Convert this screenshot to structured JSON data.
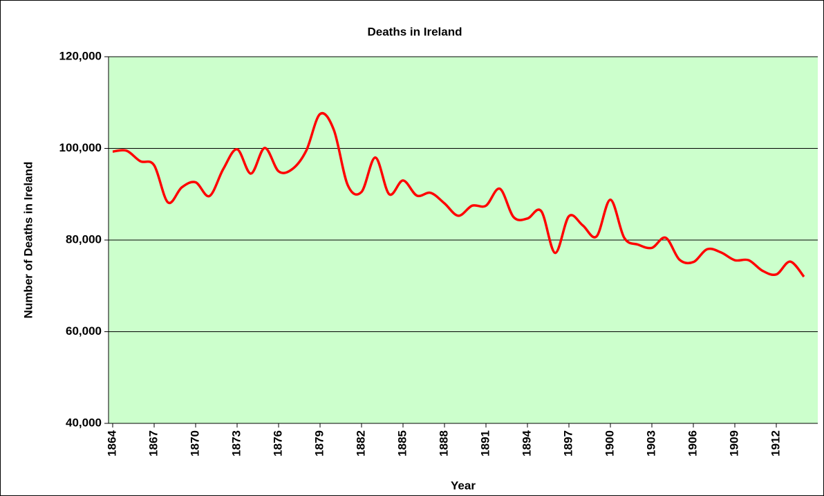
{
  "chart_data": {
    "type": "line",
    "title": "Deaths in Ireland",
    "x_label": "Year",
    "y_label": "Number of Deaths in Ireland",
    "x": [
      1864,
      1865,
      1866,
      1867,
      1868,
      1869,
      1870,
      1871,
      1872,
      1873,
      1874,
      1875,
      1876,
      1877,
      1878,
      1879,
      1880,
      1881,
      1882,
      1883,
      1884,
      1885,
      1886,
      1887,
      1888,
      1889,
      1890,
      1891,
      1892,
      1893,
      1894,
      1895,
      1896,
      1897,
      1898,
      1899,
      1900,
      1901,
      1902,
      1903,
      1904,
      1905,
      1906,
      1907,
      1908,
      1909,
      1910,
      1911,
      1912,
      1913,
      1914
    ],
    "values": [
      99300,
      99500,
      97200,
      96300,
      88200,
      91500,
      92600,
      89600,
      95500,
      99800,
      94500,
      100100,
      95000,
      95500,
      99500,
      107500,
      104000,
      92000,
      90500,
      98000,
      90000,
      93000,
      89700,
      90300,
      88000,
      85300,
      87500,
      87500,
      91200,
      85000,
      84700,
      86300,
      77200,
      85200,
      83200,
      80800,
      88800,
      80500,
      79000,
      78300,
      80500,
      75700,
      75200,
      78000,
      77300,
      75600,
      75600,
      73300,
      72500,
      75300,
      72000
    ],
    "color": "#ff0000",
    "xlim": [
      1863.7,
      1915
    ],
    "xticks": [
      1864,
      1867,
      1870,
      1873,
      1876,
      1879,
      1882,
      1885,
      1888,
      1891,
      1894,
      1897,
      1900,
      1903,
      1906,
      1909,
      1912
    ],
    "ylim": [
      40000,
      120000
    ],
    "yticks": [
      {
        "value": 40000,
        "label": "40,000"
      },
      {
        "value": 60000,
        "label": "60,000"
      },
      {
        "value": 80000,
        "label": "80,000"
      },
      {
        "value": 100000,
        "label": "100,000"
      },
      {
        "value": 120000,
        "label": "120,000"
      }
    ],
    "grid": true,
    "background": "#ccffcc"
  }
}
